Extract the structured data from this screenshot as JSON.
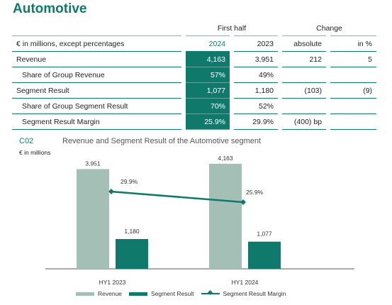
{
  "title": "Automotive",
  "table": {
    "header_group": {
      "first_half": "First half",
      "change": "Change"
    },
    "header": {
      "label": "€ in millions, except percentages",
      "y2024": "2024",
      "y2023": "2023",
      "absolute": "absolute",
      "pct": "in %"
    },
    "rows": [
      {
        "label": "Revenue",
        "v2024": "4,163",
        "v2023": "3,951",
        "abs": "212",
        "pct": "5",
        "indent": false
      },
      {
        "label": "Share of Group Revenue",
        "v2024": "57%",
        "v2023": "49%",
        "abs": "",
        "pct": "",
        "indent": true
      },
      {
        "label": "Segment Result",
        "v2024": "1,077",
        "v2023": "1,180",
        "abs": "(103)",
        "pct": "(9)",
        "indent": false
      },
      {
        "label": "Share of Group Segment Result",
        "v2024": "70%",
        "v2023": "52%",
        "abs": "",
        "pct": "",
        "indent": true
      },
      {
        "label": "Segment Result Margin",
        "v2024": "25.9%",
        "v2023": "29.9%",
        "abs": "(400)  bp",
        "pct": "",
        "indent": true
      }
    ]
  },
  "chart_label": {
    "id": "C02",
    "title": "Revenue and Segment Result of the Automotive segment",
    "unit": "€ in millions"
  },
  "chart_data": {
    "type": "bar",
    "categories": [
      "HY1 2023",
      "HY1 2024"
    ],
    "series": [
      {
        "name": "Revenue",
        "values": [
          3951,
          4163
        ],
        "labels": [
          "3,951",
          "4,163"
        ],
        "color": "#a3bfb6"
      },
      {
        "name": "Segment Result",
        "values": [
          1180,
          1077
        ],
        "labels": [
          "1,180",
          "1,077"
        ],
        "color": "#0f7a6b"
      },
      {
        "name": "Segment Result Margin",
        "kind": "line",
        "values": [
          29.9,
          25.9
        ],
        "labels": [
          "29.9%",
          "25.9%"
        ],
        "color": "#0f7a6b"
      }
    ],
    "ylim": [
      0,
      4300
    ],
    "legend_position": "bottom",
    "grid": false
  }
}
